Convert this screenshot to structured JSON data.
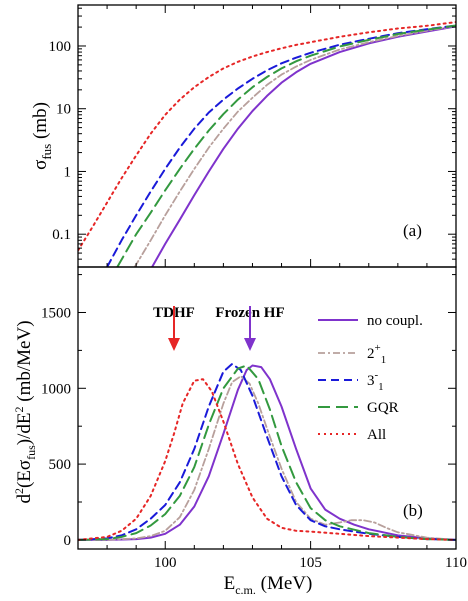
{
  "chart_data": [
    {
      "panel": "(a)",
      "type": "line",
      "yscale": "log",
      "ylabel": "σ",
      "ylabel_sub": "fus",
      "ylabel_unit": "(mb)",
      "xlim": [
        97,
        110
      ],
      "ylim": [
        0.03,
        450
      ],
      "x_ticks": [
        100,
        105,
        110
      ],
      "y_ticks": [
        0.1,
        1,
        10,
        100
      ],
      "y_tick_labels": [
        "0.1",
        "1",
        "10",
        "100"
      ],
      "series": [
        {
          "key": "nocoupl",
          "color": "#7f33cc",
          "dash": "",
          "width": 2,
          "x": [
            99.55,
            100.0,
            100.5,
            101.0,
            101.5,
            102.0,
            102.5,
            103.0,
            103.5,
            104.0,
            104.5,
            105.0,
            106.0,
            107.0,
            108.0,
            109.0,
            110.0
          ],
          "y": [
            0.03,
            0.07,
            0.17,
            0.42,
            1.0,
            2.3,
            4.8,
            9.2,
            16,
            26,
            38,
            52,
            80,
            110,
            140,
            170,
            205
          ]
        },
        {
          "key": "two_plus",
          "color": "#b8a09c",
          "dash": "7,3,2,3",
          "width": 1.8,
          "x": [
            98.95,
            99.5,
            100.0,
            100.5,
            101.0,
            101.5,
            102.0,
            102.5,
            103.0,
            103.5,
            104.0,
            104.5,
            105.0,
            106.0,
            107.0,
            108.0,
            109.0,
            110.0
          ],
          "y": [
            0.03,
            0.08,
            0.2,
            0.48,
            1.1,
            2.4,
            4.8,
            9.0,
            15,
            24,
            35,
            47,
            60,
            88,
            115,
            145,
            175,
            208
          ]
        },
        {
          "key": "three_minus",
          "color": "#1a1ad9",
          "dash": "8,5",
          "width": 2,
          "x": [
            98.0,
            98.5,
            99.0,
            99.5,
            100.0,
            100.5,
            101.0,
            101.5,
            102.0,
            102.5,
            103.0,
            103.5,
            104.0,
            104.5,
            105.0,
            106.0,
            107.0,
            108.0,
            109.0,
            110.0
          ],
          "y": [
            0.03,
            0.08,
            0.2,
            0.48,
            1.1,
            2.4,
            4.8,
            8.7,
            14,
            21,
            30,
            41,
            53,
            65,
            78,
            105,
            130,
            160,
            185,
            212
          ]
        },
        {
          "key": "gqr",
          "color": "#33993f",
          "dash": "12,6",
          "width": 2,
          "x": [
            98.35,
            99.0,
            99.5,
            100.0,
            100.5,
            101.0,
            101.5,
            102.0,
            102.5,
            103.0,
            103.5,
            104.0,
            104.5,
            105.0,
            106.0,
            107.0,
            108.0,
            109.0,
            110.0
          ],
          "y": [
            0.03,
            0.1,
            0.22,
            0.5,
            1.1,
            2.3,
            4.5,
            8.2,
            14,
            22,
            32,
            44,
            57,
            70,
            98,
            125,
            155,
            182,
            212
          ]
        },
        {
          "key": "all",
          "color": "#e62626",
          "dash": "2,4",
          "width": 2,
          "x": [
            97.0,
            97.5,
            98.0,
            98.5,
            99.0,
            99.5,
            100.0,
            100.5,
            101.0,
            101.5,
            102.0,
            102.5,
            103.0,
            103.5,
            104.0,
            104.5,
            105.0,
            106.0,
            107.0,
            108.0,
            109.0,
            110.0
          ],
          "y": [
            0.055,
            0.13,
            0.32,
            0.78,
            1.8,
            4.0,
            8.0,
            14,
            22,
            32,
            44,
            56,
            68,
            80,
            92,
            104,
            115,
            140,
            165,
            190,
            210,
            240
          ]
        }
      ]
    },
    {
      "panel": "(b)",
      "type": "line",
      "xlabel": "E",
      "xlabel_sub": "c.m.",
      "xlabel_unit": "(MeV)",
      "ylabel_pre": "d",
      "ylabel_sup1": "2",
      "ylabel_mid": "(Eσ",
      "ylabel_sub": "fus",
      "ylabel_post": ")/dE",
      "ylabel_sup2": "2",
      "ylabel_unit": "(mb/MeV)",
      "xlim": [
        97,
        110
      ],
      "ylim": [
        -60,
        1800
      ],
      "x_ticks": [
        100,
        105,
        110
      ],
      "x_tick_labels": [
        "100",
        "105",
        "110"
      ],
      "y_ticks": [
        0,
        500,
        1000,
        1500
      ],
      "y_tick_labels": [
        "0",
        "500",
        "1000",
        "1500"
      ],
      "series": [
        {
          "key": "nocoupl",
          "color": "#7f33cc",
          "dash": "",
          "width": 2,
          "x": [
            97.0,
            98.0,
            99.0,
            99.5,
            100.0,
            100.5,
            101.0,
            101.5,
            102.0,
            102.5,
            102.8,
            103.0,
            103.3,
            103.6,
            104.0,
            104.5,
            105.0,
            105.5,
            106.0,
            106.5,
            107.0,
            107.5,
            108.0,
            109.0,
            110.0
          ],
          "y": [
            0,
            0,
            5,
            15,
            40,
            100,
            220,
            420,
            700,
            990,
            1120,
            1150,
            1140,
            1060,
            880,
            600,
            340,
            200,
            140,
            100,
            70,
            50,
            30,
            10,
            0
          ]
        },
        {
          "key": "two_plus",
          "color": "#b8a09c",
          "dash": "7,3,2,3",
          "width": 1.8,
          "x": [
            97.0,
            98.0,
            99.0,
            99.5,
            100.0,
            100.5,
            101.0,
            101.5,
            102.0,
            102.3,
            102.6,
            102.9,
            103.2,
            103.6,
            104.0,
            104.5,
            105.0,
            105.5,
            106.0,
            106.4,
            106.8,
            107.2,
            107.6,
            108.0,
            109.0,
            110.0
          ],
          "y": [
            0,
            0,
            10,
            25,
            60,
            150,
            330,
            600,
            900,
            1040,
            1080,
            1030,
            900,
            680,
            470,
            250,
            140,
            100,
            115,
            130,
            130,
            115,
            80,
            50,
            15,
            0
          ]
        },
        {
          "key": "three_minus",
          "color": "#1a1ad9",
          "dash": "8,5",
          "width": 2,
          "x": [
            97.0,
            98.0,
            98.5,
            99.0,
            99.5,
            100.0,
            100.5,
            101.0,
            101.5,
            102.0,
            102.3,
            102.6,
            103.0,
            103.5,
            104.0,
            104.5,
            105.0,
            105.5,
            106.0,
            107.0,
            108.0,
            109.0,
            110.0
          ],
          "y": [
            0,
            10,
            30,
            70,
            140,
            230,
            380,
            600,
            880,
            1110,
            1160,
            1120,
            950,
            680,
            420,
            230,
            130,
            90,
            70,
            40,
            20,
            5,
            0
          ]
        },
        {
          "key": "gqr",
          "color": "#33993f",
          "dash": "12,6",
          "width": 2,
          "x": [
            97.0,
            98.0,
            98.5,
            99.0,
            99.5,
            100.0,
            100.5,
            101.0,
            101.5,
            102.0,
            102.5,
            102.8,
            103.2,
            103.6,
            104.0,
            104.5,
            105.0,
            105.5,
            106.0,
            107.0,
            108.0,
            109.0,
            110.0
          ],
          "y": [
            0,
            5,
            20,
            45,
            95,
            170,
            290,
            480,
            760,
            1000,
            1130,
            1150,
            1060,
            860,
            620,
            380,
            210,
            130,
            90,
            45,
            20,
            5,
            0
          ]
        },
        {
          "key": "all",
          "color": "#e62626",
          "dash": "2,4",
          "width": 2,
          "x": [
            97.0,
            98.0,
            98.5,
            99.0,
            99.5,
            100.0,
            100.3,
            100.6,
            101.0,
            101.3,
            101.6,
            102.0,
            102.5,
            103.0,
            103.5,
            104.0,
            104.5,
            105.0,
            106.0,
            107.0,
            108.0,
            109.0,
            110.0
          ],
          "y": [
            0,
            20,
            60,
            140,
            290,
            520,
            700,
            900,
            1050,
            1060,
            980,
            780,
            500,
            280,
            140,
            80,
            60,
            55,
            40,
            25,
            15,
            5,
            0
          ]
        }
      ]
    }
  ],
  "legend": {
    "items": [
      {
        "key": "nocoupl",
        "label": "no coupl.",
        "sup": "",
        "sub": ""
      },
      {
        "key": "two_plus",
        "label": "2",
        "sup": "+",
        "sub": "1"
      },
      {
        "key": "three_minus",
        "label": "3",
        "sup": "-",
        "sub": "1"
      },
      {
        "key": "gqr",
        "label": "GQR",
        "sup": "",
        "sub": ""
      },
      {
        "key": "all",
        "label": "All",
        "sup": "",
        "sub": ""
      }
    ]
  },
  "annotations": {
    "tdhf": {
      "label": "TDHF",
      "color": "#e62626",
      "x_energy": 100.4
    },
    "frozen_hf": {
      "label": "Frozen HF",
      "color": "#7f33cc",
      "x_energy": 103.2
    }
  },
  "colors": {
    "nocoupl": "#7f33cc",
    "two_plus": "#b8a09c",
    "three_minus": "#1a1ad9",
    "gqr": "#33993f",
    "all": "#e62626"
  }
}
